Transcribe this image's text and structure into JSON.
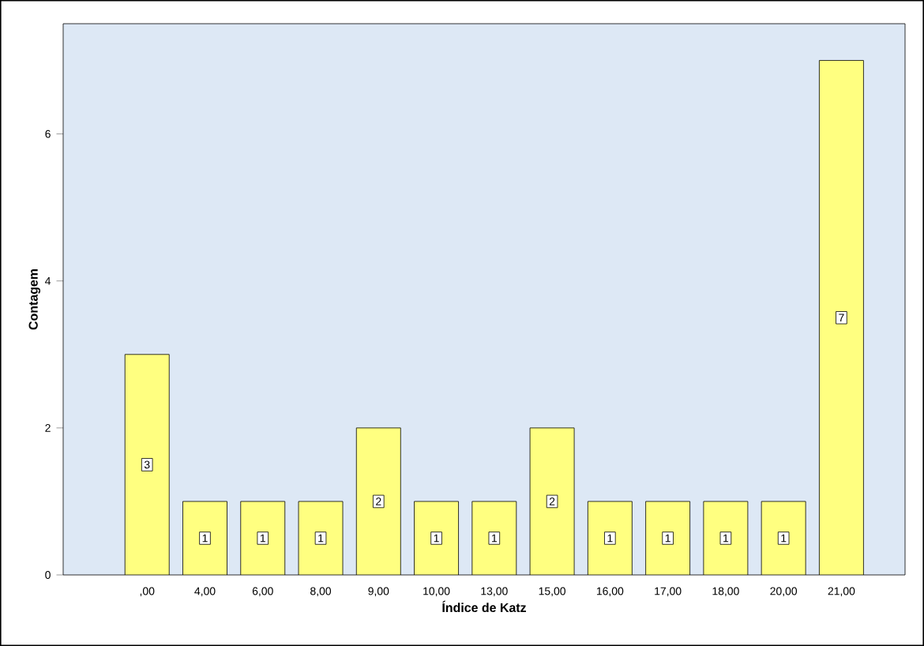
{
  "chart_data": {
    "type": "bar",
    "xlabel": "Índice de Katz",
    "ylabel": "Contagem",
    "categories": [
      ",00",
      "4,00",
      "6,00",
      "8,00",
      "9,00",
      "10,00",
      "13,00",
      "15,00",
      "16,00",
      "17,00",
      "18,00",
      "20,00",
      "21,00"
    ],
    "values": [
      3,
      1,
      1,
      1,
      2,
      1,
      1,
      2,
      1,
      1,
      1,
      1,
      7
    ],
    "color": "#ffff80",
    "ylim": [
      0,
      7.5
    ],
    "yticks": [
      0,
      2,
      4,
      6
    ],
    "grid": false,
    "data_labels": true
  }
}
